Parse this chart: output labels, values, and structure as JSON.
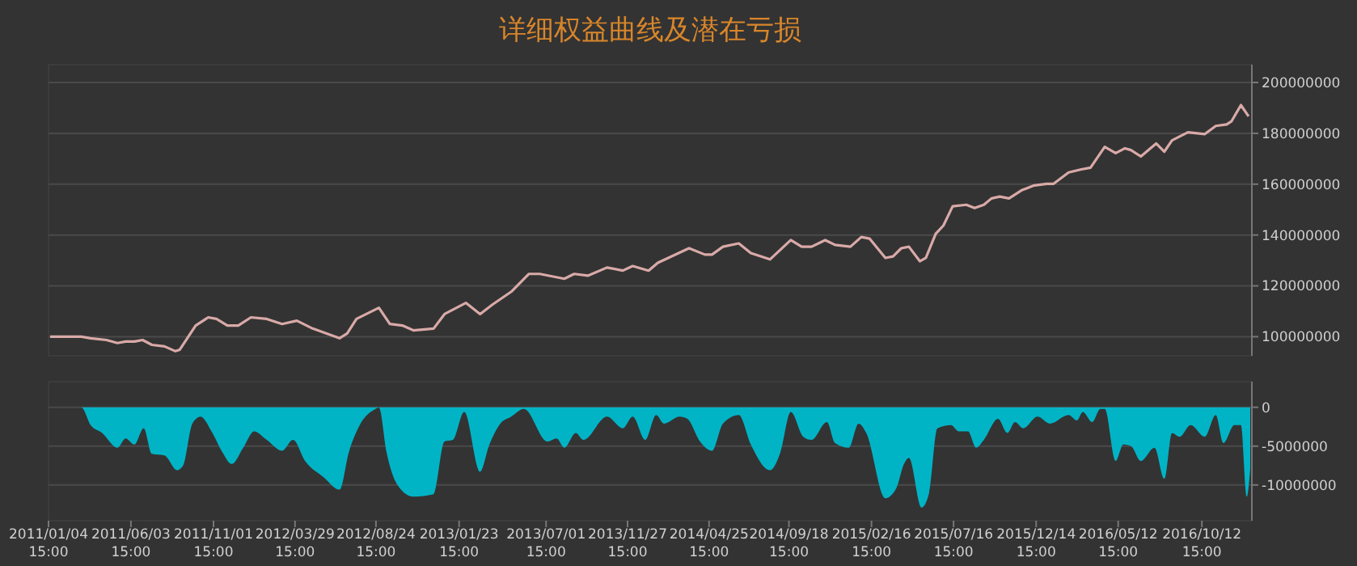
{
  "chart_data": [
    {
      "type": "line",
      "title": "详细权益曲线及潜在亏损",
      "xlim": [
        "2011-01-04",
        "2017-01-12"
      ],
      "ylim": [
        92500000,
        207000000
      ],
      "yticks": [
        100000000,
        120000000,
        140000000,
        160000000,
        180000000,
        200000000
      ],
      "grid": "y",
      "tick_labels": "y",
      "marker": "none",
      "line_style": "solid",
      "series": [
        {
          "color": "#d9aaa8",
          "x": [
            "2011-01-07",
            "2011-03-05",
            "2011-03-22",
            "2011-04-20",
            "2011-05-10",
            "2011-05-25",
            "2011-06-10",
            "2011-06-25",
            "2011-07-12",
            "2011-08-04",
            "2011-08-24",
            "2011-09-01",
            "2011-09-30",
            "2011-10-23",
            "2011-11-07",
            "2011-11-27",
            "2011-12-17",
            "2012-01-09",
            "2012-02-07",
            "2012-03-06",
            "2012-04-02",
            "2012-05-01",
            "2012-06-19",
            "2012-07-03",
            "2012-07-20",
            "2012-08-30",
            "2012-09-19",
            "2012-10-12",
            "2012-11-01",
            "2012-12-08",
            "2012-12-28",
            "2013-02-05",
            "2013-03-03",
            "2013-03-26",
            "2013-04-29",
            "2013-05-31",
            "2013-06-20",
            "2013-08-04",
            "2013-08-22",
            "2013-09-16",
            "2013-10-21",
            "2013-11-19",
            "2013-12-07",
            "2014-01-05",
            "2014-01-22",
            "2014-03-20",
            "2014-04-18",
            "2014-05-01",
            "2014-05-21",
            "2014-06-19",
            "2014-07-11",
            "2014-08-15",
            "2014-09-22",
            "2014-10-12",
            "2014-10-30",
            "2014-11-24",
            "2014-12-12",
            "2015-01-09",
            "2015-01-29",
            "2015-02-13",
            "2015-03-14",
            "2015-03-28",
            "2015-04-12",
            "2015-04-26",
            "2015-05-16",
            "2015-05-27",
            "2015-06-14",
            "2015-06-28",
            "2015-07-15",
            "2015-08-09",
            "2015-08-24",
            "2015-09-10",
            "2015-09-24",
            "2015-10-09",
            "2015-10-26",
            "2015-11-18",
            "2015-12-11",
            "2016-01-03",
            "2016-01-15",
            "2016-02-12",
            "2016-03-06",
            "2016-03-23",
            "2016-04-18",
            "2016-05-08",
            "2016-05-25",
            "2016-06-05",
            "2016-06-23",
            "2016-07-21",
            "2016-08-05",
            "2016-08-19",
            "2016-09-17",
            "2016-10-18",
            "2016-11-07",
            "2016-11-27",
            "2016-12-06",
            "2016-12-23",
            "2017-01-06"
          ],
          "values": [
            100000000,
            100000000,
            99400000,
            98700000,
            97500000,
            98100000,
            98100000,
            98700000,
            96800000,
            96200000,
            94300000,
            94900000,
            104400000,
            107600000,
            107000000,
            104400000,
            104400000,
            107600000,
            107000000,
            105000000,
            106300000,
            103200000,
            99400000,
            101300000,
            107000000,
            111400000,
            105000000,
            104400000,
            102500000,
            103200000,
            108900000,
            113300000,
            108900000,
            112700000,
            117700000,
            124700000,
            124700000,
            122800000,
            124700000,
            124000000,
            127200000,
            126000000,
            127800000,
            126000000,
            129100000,
            134800000,
            132300000,
            132300000,
            135400000,
            136700000,
            132900000,
            130400000,
            138000000,
            135400000,
            135400000,
            138000000,
            136100000,
            135400000,
            139200000,
            138600000,
            131000000,
            131600000,
            134800000,
            135400000,
            129700000,
            131000000,
            140500000,
            143700000,
            151300000,
            151900000,
            150600000,
            151900000,
            154400000,
            155100000,
            154400000,
            157600000,
            159500000,
            160100000,
            160100000,
            164600000,
            165800000,
            166500000,
            174700000,
            172200000,
            174100000,
            173400000,
            170900000,
            176000000,
            172800000,
            177200000,
            180400000,
            179700000,
            182900000,
            183500000,
            184800000,
            191100000,
            186700000
          ]
        }
      ]
    },
    {
      "type": "area",
      "xlim": [
        "2011-01-04",
        "2017-01-12"
      ],
      "xticks": [
        {
          "value": "2011-01-04T00:00",
          "label": "2011/01/04 15:00"
        },
        {
          "value": "2011-06-03T15:00",
          "label": "2011/06/03 15:00"
        },
        {
          "value": "2011-11-01T15:00",
          "label": "2011/11/01 15:00"
        },
        {
          "value": "2012-03-29T15:00",
          "label": "2012/03/29 15:00"
        },
        {
          "value": "2012-08-24T15:00",
          "label": "2012/08/24 15:00"
        },
        {
          "value": "2013-01-23T15:00",
          "label": "2013/01/23 15:00"
        },
        {
          "value": "2013-07-01T15:00",
          "label": "2013/07/01 15:00"
        },
        {
          "value": "2013-11-27T15:00",
          "label": "2013/11/27 15:00"
        },
        {
          "value": "2014-04-25T15:00",
          "label": "2014/04/25 15:00"
        },
        {
          "value": "2014-09-18T15:00",
          "label": "2014/09/18 15:00"
        },
        {
          "value": "2015-02-16T15:00",
          "label": "2015/02/16 15:00"
        },
        {
          "value": "2015-07-16T15:00",
          "label": "2015/07/16 15:00"
        },
        {
          "value": "2015-12-14T15:00",
          "label": "2015/12/14 15:00"
        },
        {
          "value": "2016-05-12T15:00",
          "label": "2016/05/12 15:00"
        },
        {
          "value": "2016-10-12T15:00",
          "label": "2016/10/12 15:00"
        }
      ],
      "ylim": [
        -14600000,
        3300000
      ],
      "yticks": [
        0,
        -5000000,
        -10000000
      ],
      "grid": "y",
      "series": [
        {
          "color": "#00b4c6",
          "x": [
            "2011-01-04",
            "2011-03-05",
            "2011-03-22",
            "2011-04-12",
            "2011-05-10",
            "2011-05-25",
            "2011-06-10",
            "2011-06-27",
            "2011-07-12",
            "2011-08-04",
            "2011-08-27",
            "2011-09-07",
            "2011-09-24",
            "2011-10-09",
            "2011-10-29",
            "2011-11-18",
            "2011-12-05",
            "2011-12-26",
            "2012-01-15",
            "2012-02-07",
            "2012-03-06",
            "2012-03-26",
            "2012-04-17",
            "2012-05-21",
            "2012-06-19",
            "2012-07-06",
            "2012-07-26",
            "2012-08-24",
            "2012-08-30",
            "2012-09-13",
            "2012-10-03",
            "2012-11-01",
            "2012-12-08",
            "2012-12-28",
            "2013-01-12",
            "2013-02-02",
            "2013-03-03",
            "2013-03-20",
            "2013-04-09",
            "2013-04-29",
            "2013-05-22",
            "2013-07-04",
            "2013-07-21",
            "2013-08-04",
            "2013-08-25",
            "2013-09-08",
            "2013-10-21",
            "2013-11-19",
            "2013-12-07",
            "2013-12-30",
            "2014-01-19",
            "2014-02-02",
            "2014-03-03",
            "2014-03-17",
            "2014-04-09",
            "2014-05-01",
            "2014-05-21",
            "2014-06-19",
            "2014-07-11",
            "2014-08-15",
            "2014-09-03",
            "2014-09-22",
            "2014-10-15",
            "2014-10-30",
            "2014-11-27",
            "2014-12-12",
            "2015-01-06",
            "2015-01-24",
            "2015-02-07",
            "2015-03-14",
            "2015-04-03",
            "2015-04-17",
            "2015-04-26",
            "2015-05-19",
            "2015-06-02",
            "2015-06-17",
            "2015-07-12",
            "2015-07-26",
            "2015-08-12",
            "2015-08-27",
            "2015-09-10",
            "2015-10-06",
            "2015-10-23",
            "2015-11-06",
            "2015-11-21",
            "2015-12-17",
            "2016-01-09",
            "2016-02-12",
            "2016-02-27",
            "2016-03-09",
            "2016-03-26",
            "2016-04-10",
            "2016-04-18",
            "2016-05-08",
            "2016-05-22",
            "2016-06-05",
            "2016-06-23",
            "2016-07-18",
            "2016-08-05",
            "2016-08-19",
            "2016-09-02",
            "2016-09-22",
            "2016-10-18",
            "2016-11-07",
            "2016-11-21",
            "2016-12-11",
            "2016-12-23",
            "2017-01-03",
            "2017-01-09"
          ],
          "values": [
            0,
            0,
            -2300000,
            -3300000,
            -5200000,
            -4000000,
            -4800000,
            -2700000,
            -6000000,
            -6200000,
            -8100000,
            -7500000,
            -2100000,
            -1200000,
            -3100000,
            -5800000,
            -7300000,
            -5200000,
            -3100000,
            -4200000,
            -5600000,
            -4200000,
            -6900000,
            -9000000,
            -10600000,
            -5800000,
            -2300000,
            -200000,
            0,
            -5800000,
            -10000000,
            -11500000,
            -11200000,
            -4400000,
            -4200000,
            -600000,
            -8300000,
            -4800000,
            -2100000,
            -1200000,
            -200000,
            -4400000,
            -4000000,
            -5200000,
            -3300000,
            -4200000,
            -1200000,
            -2700000,
            -1200000,
            -4200000,
            -1000000,
            -2100000,
            -1200000,
            -1500000,
            -4400000,
            -5600000,
            -2100000,
            -1000000,
            -4800000,
            -8100000,
            -5800000,
            -600000,
            -3800000,
            -4200000,
            -1900000,
            -4600000,
            -5200000,
            -2100000,
            -3300000,
            -11700000,
            -10400000,
            -7300000,
            -6500000,
            -12900000,
            -11000000,
            -2700000,
            -2300000,
            -3100000,
            -3100000,
            -5200000,
            -4200000,
            -1500000,
            -3300000,
            -1900000,
            -2700000,
            -1200000,
            -2100000,
            -1000000,
            -1700000,
            -600000,
            -1900000,
            -200000,
            -200000,
            -6900000,
            -4800000,
            -5000000,
            -6900000,
            -5200000,
            -9200000,
            -3300000,
            -3800000,
            -2300000,
            -3800000,
            -1000000,
            -4600000,
            -2300000,
            -2300000,
            -11500000,
            -7900000
          ]
        }
      ]
    }
  ]
}
